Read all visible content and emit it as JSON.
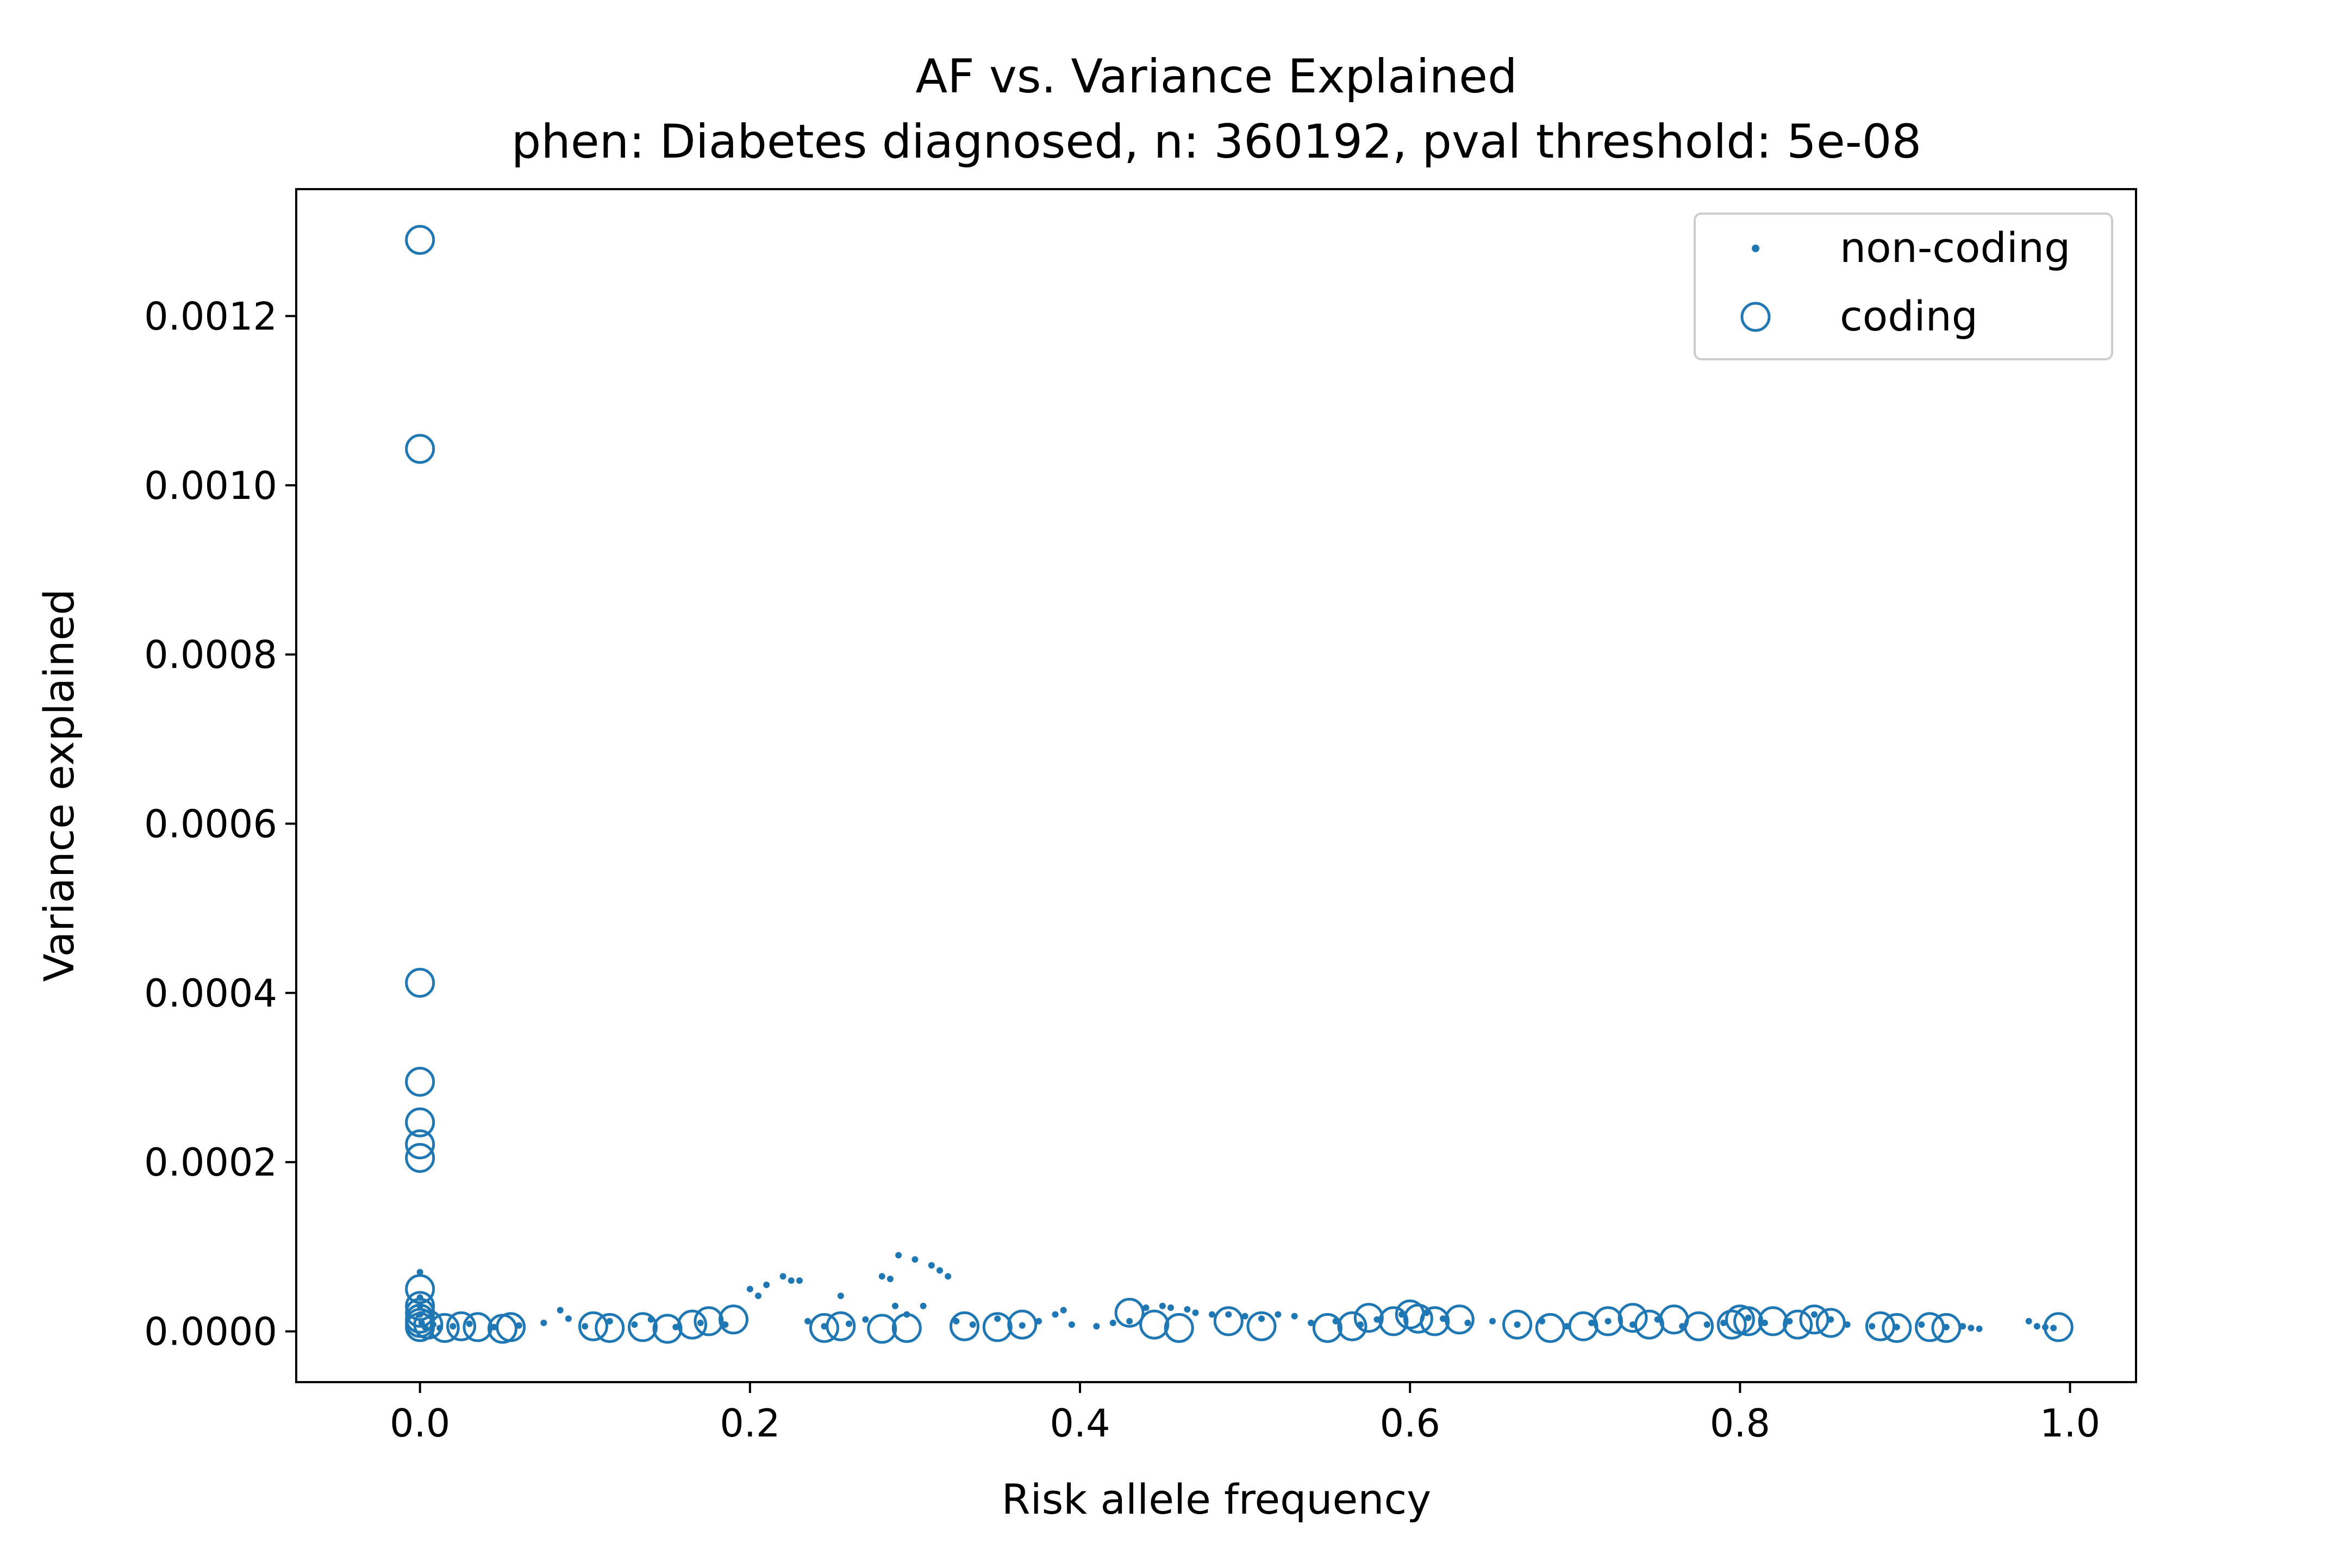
{
  "chart_data": {
    "type": "scatter",
    "title": "AF vs. Variance Explained",
    "subtitle": "phen: Diabetes diagnosed, n: 360192, pval threshold: 5e-08",
    "xlabel": "Risk allele frequency",
    "ylabel": "Variance explained",
    "xlim": [
      -0.075,
      1.04
    ],
    "ylim": [
      -6e-05,
      0.00135
    ],
    "x_ticks": [
      0.0,
      0.2,
      0.4,
      0.6,
      0.8,
      1.0
    ],
    "x_tick_labels": [
      "0.0",
      "0.2",
      "0.4",
      "0.6",
      "0.8",
      "1.0"
    ],
    "y_ticks": [
      0.0,
      0.0002,
      0.0004,
      0.0006,
      0.0008,
      0.001,
      0.0012
    ],
    "y_tick_labels": [
      "0.0000",
      "0.0002",
      "0.0004",
      "0.0006",
      "0.0008",
      "0.0010",
      "0.0012"
    ],
    "grid": false,
    "legend_position": "top-right",
    "color": "#1f77b4",
    "series": [
      {
        "name": "non-coding",
        "marker": "dot",
        "points": [
          [
            0.0,
            7e-05
          ],
          [
            0.0,
            4e-05
          ],
          [
            0.0,
            3e-05
          ],
          [
            0.0,
            2e-05
          ],
          [
            0.001,
            1e-05
          ],
          [
            0.003,
            5e-06
          ],
          [
            0.008,
            8e-06
          ],
          [
            0.012,
            4e-06
          ],
          [
            0.02,
            6e-06
          ],
          [
            0.03,
            9e-06
          ],
          [
            0.045,
            5e-06
          ],
          [
            0.06,
            7e-06
          ],
          [
            0.075,
            1e-05
          ],
          [
            0.085,
            2.5e-05
          ],
          [
            0.09,
            1.5e-05
          ],
          [
            0.1,
            6e-06
          ],
          [
            0.115,
            1.2e-05
          ],
          [
            0.13,
            8e-06
          ],
          [
            0.14,
            1.4e-05
          ],
          [
            0.155,
            5e-06
          ],
          [
            0.17,
            1e-05
          ],
          [
            0.185,
            8e-06
          ],
          [
            0.2,
            5e-05
          ],
          [
            0.205,
            4.2e-05
          ],
          [
            0.21,
            5.5e-05
          ],
          [
            0.22,
            6.5e-05
          ],
          [
            0.225,
            6e-05
          ],
          [
            0.23,
            6e-05
          ],
          [
            0.235,
            1.2e-05
          ],
          [
            0.245,
            6e-06
          ],
          [
            0.255,
            4.2e-05
          ],
          [
            0.26,
            9e-06
          ],
          [
            0.27,
            1.4e-05
          ],
          [
            0.28,
            6.5e-05
          ],
          [
            0.285,
            6.2e-05
          ],
          [
            0.29,
            9e-05
          ],
          [
            0.3,
            8.5e-05
          ],
          [
            0.31,
            7.8e-05
          ],
          [
            0.315,
            7.2e-05
          ],
          [
            0.32,
            6.5e-05
          ],
          [
            0.288,
            3e-05
          ],
          [
            0.295,
            2e-05
          ],
          [
            0.305,
            3e-05
          ],
          [
            0.325,
            1.2e-05
          ],
          [
            0.335,
            8e-06
          ],
          [
            0.35,
            1.5e-05
          ],
          [
            0.365,
            7e-06
          ],
          [
            0.375,
            1.2e-05
          ],
          [
            0.385,
            2e-05
          ],
          [
            0.39,
            2.5e-05
          ],
          [
            0.395,
            8e-06
          ],
          [
            0.41,
            6e-06
          ],
          [
            0.42,
            1e-05
          ],
          [
            0.43,
            1.2e-05
          ],
          [
            0.44,
            2.8e-05
          ],
          [
            0.45,
            3e-05
          ],
          [
            0.455,
            2.8e-05
          ],
          [
            0.465,
            2.6e-05
          ],
          [
            0.47,
            2.2e-05
          ],
          [
            0.48,
            2e-05
          ],
          [
            0.49,
            2e-05
          ],
          [
            0.5,
            1.8e-05
          ],
          [
            0.51,
            1.5e-05
          ],
          [
            0.52,
            2e-05
          ],
          [
            0.53,
            1.8e-05
          ],
          [
            0.54,
            1e-05
          ],
          [
            0.555,
            1.2e-05
          ],
          [
            0.57,
            8e-06
          ],
          [
            0.58,
            1.4e-05
          ],
          [
            0.595,
            2e-05
          ],
          [
            0.61,
            2.2e-05
          ],
          [
            0.62,
            1.5e-05
          ],
          [
            0.635,
            1e-05
          ],
          [
            0.65,
            1.2e-05
          ],
          [
            0.665,
            8e-06
          ],
          [
            0.68,
            1.2e-05
          ],
          [
            0.695,
            6e-06
          ],
          [
            0.71,
            1e-05
          ],
          [
            0.72,
            1.2e-05
          ],
          [
            0.735,
            8e-06
          ],
          [
            0.75,
            1.4e-05
          ],
          [
            0.765,
            6e-06
          ],
          [
            0.78,
            8e-06
          ],
          [
            0.79,
            1e-05
          ],
          [
            0.805,
            1.6e-05
          ],
          [
            0.815,
            1e-05
          ],
          [
            0.83,
            1.2e-05
          ],
          [
            0.845,
            2e-05
          ],
          [
            0.855,
            1.4e-05
          ],
          [
            0.865,
            8e-06
          ],
          [
            0.88,
            6e-06
          ],
          [
            0.895,
            5e-06
          ],
          [
            0.91,
            8e-06
          ],
          [
            0.925,
            5e-06
          ],
          [
            0.935,
            6e-06
          ],
          [
            0.94,
            4e-06
          ],
          [
            0.945,
            3e-06
          ],
          [
            0.975,
            1.2e-05
          ],
          [
            0.98,
            6e-06
          ],
          [
            0.985,
            5e-06
          ],
          [
            0.99,
            4e-06
          ]
        ]
      },
      {
        "name": "coding",
        "marker": "open-circle",
        "points": [
          [
            0.0,
            0.00129
          ],
          [
            0.0,
            0.001043
          ],
          [
            0.0,
            0.000412
          ],
          [
            0.0,
            0.000295
          ],
          [
            0.0,
            0.000247
          ],
          [
            0.0,
            0.000221
          ],
          [
            0.0,
            0.000205
          ],
          [
            0.0,
            5e-05
          ],
          [
            0.0,
            3e-05
          ],
          [
            0.0,
            2.2e-05
          ],
          [
            0.0,
            1.5e-05
          ],
          [
            0.0,
            1e-05
          ],
          [
            0.0,
            5e-06
          ],
          [
            0.005,
            8e-06
          ],
          [
            0.015,
            4e-06
          ],
          [
            0.025,
            6e-06
          ],
          [
            0.035,
            5e-06
          ],
          [
            0.05,
            3e-06
          ],
          [
            0.055,
            5e-06
          ],
          [
            0.105,
            6e-06
          ],
          [
            0.115,
            4e-06
          ],
          [
            0.135,
            5e-06
          ],
          [
            0.15,
            3e-06
          ],
          [
            0.165,
            8e-06
          ],
          [
            0.175,
            1.2e-05
          ],
          [
            0.19,
            1.4e-05
          ],
          [
            0.245,
            4e-06
          ],
          [
            0.255,
            6e-06
          ],
          [
            0.28,
            3e-06
          ],
          [
            0.295,
            4e-06
          ],
          [
            0.33,
            6e-06
          ],
          [
            0.35,
            5e-06
          ],
          [
            0.365,
            8e-06
          ],
          [
            0.43,
            2.2e-05
          ],
          [
            0.445,
            8e-06
          ],
          [
            0.46,
            4e-06
          ],
          [
            0.49,
            1.2e-05
          ],
          [
            0.51,
            6e-06
          ],
          [
            0.55,
            4e-06
          ],
          [
            0.565,
            6e-06
          ],
          [
            0.575,
            1.6e-05
          ],
          [
            0.59,
            1.2e-05
          ],
          [
            0.6,
            2e-05
          ],
          [
            0.605,
            1.5e-05
          ],
          [
            0.615,
            1.2e-05
          ],
          [
            0.63,
            1.4e-05
          ],
          [
            0.665,
            8e-06
          ],
          [
            0.685,
            4e-06
          ],
          [
            0.705,
            6e-06
          ],
          [
            0.72,
            1.2e-05
          ],
          [
            0.735,
            1.6e-05
          ],
          [
            0.745,
            8e-06
          ],
          [
            0.76,
            1.4e-05
          ],
          [
            0.775,
            6e-06
          ],
          [
            0.795,
            8e-06
          ],
          [
            0.8,
            1.4e-05
          ],
          [
            0.805,
            1.2e-05
          ],
          [
            0.82,
            1.2e-05
          ],
          [
            0.835,
            8e-06
          ],
          [
            0.845,
            1.4e-05
          ],
          [
            0.855,
            1e-05
          ],
          [
            0.885,
            6e-06
          ],
          [
            0.895,
            4e-06
          ],
          [
            0.915,
            5e-06
          ],
          [
            0.925,
            4e-06
          ],
          [
            0.993,
            5e-06
          ]
        ]
      }
    ]
  }
}
